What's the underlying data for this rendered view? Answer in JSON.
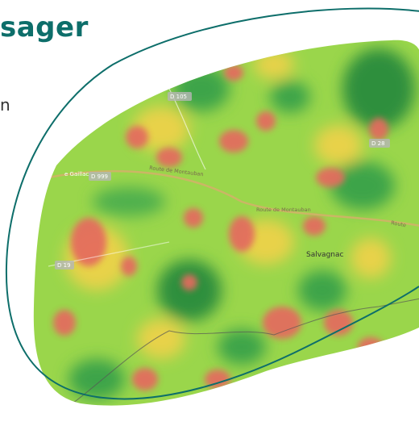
{
  "header": {
    "title_partial": "sager"
  },
  "side": {
    "text_fragment": "n"
  },
  "map": {
    "place": "Salvagnac",
    "roads": {
      "d105": "D 105",
      "d28": "D 28",
      "d999": "D 999",
      "d19": "D 19",
      "gaillac_prefix": "e Gaillac",
      "montauban_1": "Route de Montauban",
      "montauban_2": "Route de Montauban",
      "route_edge": "Route"
    }
  },
  "colors": {
    "brand": "#0d6e6a",
    "heat_low": "#39a84a",
    "heat_mid": "#9ad64b",
    "heat_high": "#e46a5f",
    "heat_warm": "#e8d24a"
  }
}
